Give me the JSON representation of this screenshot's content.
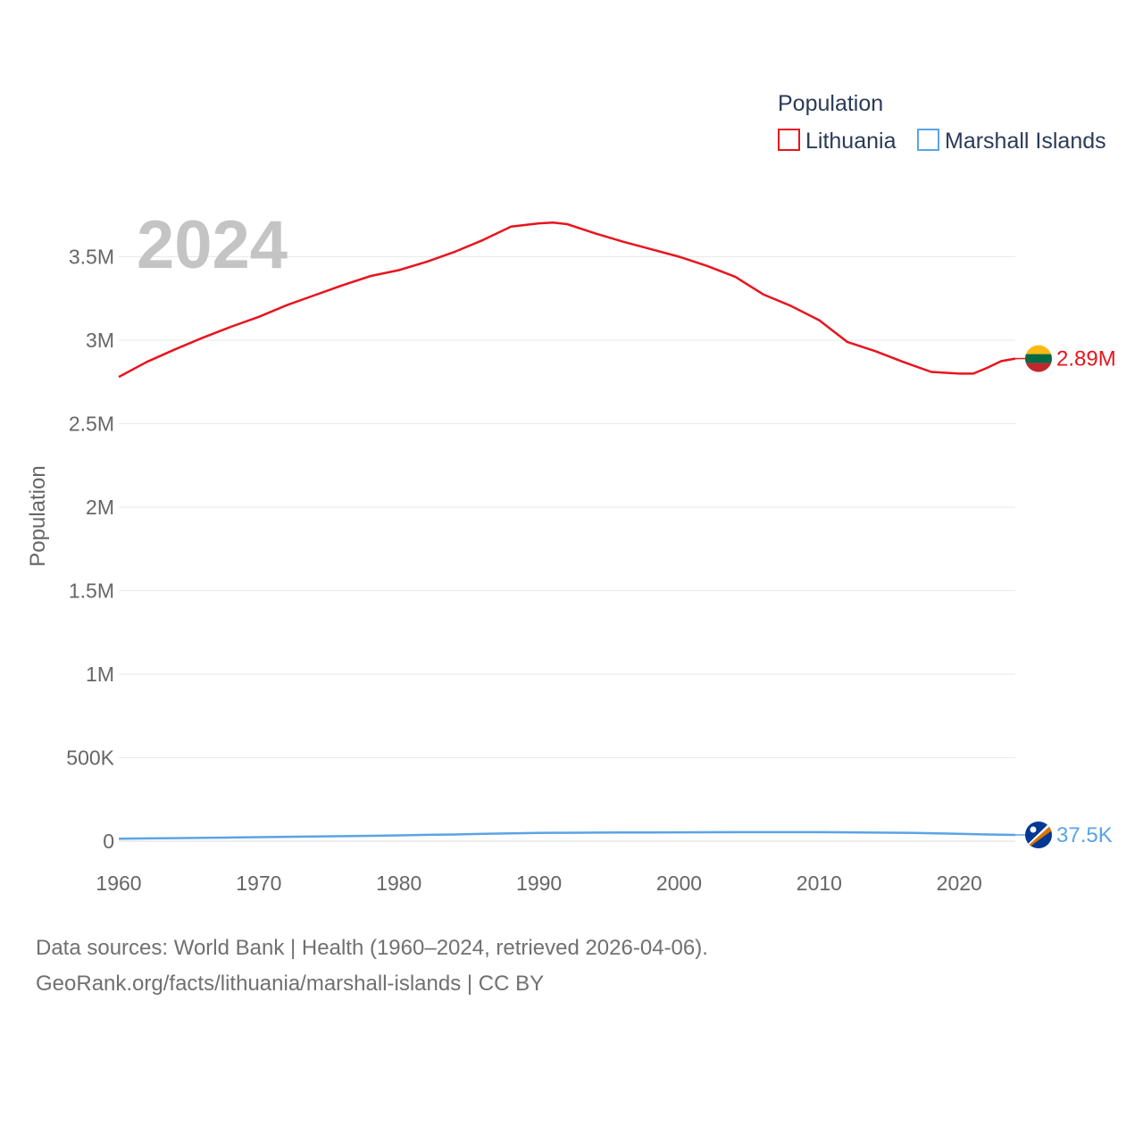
{
  "chart_data": {
    "type": "line",
    "title": "",
    "ylabel": "Population",
    "xlabel": "",
    "year_display": "2024",
    "legend": {
      "title": "Population",
      "placement": "top-right"
    },
    "xlim": [
      1960,
      2024
    ],
    "ylim": [
      0,
      3750000
    ],
    "x_ticks": [
      {
        "value": 1960,
        "label": "1960"
      },
      {
        "value": 1970,
        "label": "1970"
      },
      {
        "value": 1980,
        "label": "1980"
      },
      {
        "value": 1990,
        "label": "1990"
      },
      {
        "value": 2000,
        "label": "2000"
      },
      {
        "value": 2010,
        "label": "2010"
      },
      {
        "value": 2020,
        "label": "2020"
      }
    ],
    "y_ticks": [
      {
        "value": 0,
        "label": "0"
      },
      {
        "value": 500000,
        "label": "500K"
      },
      {
        "value": 1000000,
        "label": "1M"
      },
      {
        "value": 1500000,
        "label": "1.5M"
      },
      {
        "value": 2000000,
        "label": "2M"
      },
      {
        "value": 2500000,
        "label": "2.5M"
      },
      {
        "value": 3000000,
        "label": "3M"
      },
      {
        "value": 3500000,
        "label": "3.5M"
      }
    ],
    "x": [
      1960,
      1962,
      1964,
      1966,
      1968,
      1970,
      1972,
      1974,
      1976,
      1978,
      1980,
      1982,
      1984,
      1986,
      1988,
      1990,
      1991,
      1992,
      1994,
      1996,
      1998,
      2000,
      2002,
      2004,
      2006,
      2008,
      2010,
      2012,
      2014,
      2016,
      2018,
      2020,
      2021,
      2022,
      2023,
      2024
    ],
    "series": [
      {
        "name": "Lithuania",
        "color": "#e8141e",
        "end_label": "2.89M",
        "flag": "lithuania-flag",
        "values": [
          2780000,
          2870000,
          2945000,
          3015000,
          3080000,
          3140000,
          3210000,
          3270000,
          3330000,
          3385000,
          3420000,
          3470000,
          3530000,
          3600000,
          3680000,
          3700000,
          3705000,
          3695000,
          3640000,
          3590000,
          3545000,
          3500000,
          3445000,
          3380000,
          3275000,
          3205000,
          3120000,
          2990000,
          2935000,
          2870000,
          2810000,
          2800000,
          2800000,
          2835000,
          2875000,
          2890000
        ]
      },
      {
        "name": "Marshall Islands",
        "color": "#5ba3e6",
        "end_label": "37.5K",
        "flag": "marshall-islands-flag",
        "values": [
          15000,
          16500,
          18000,
          20000,
          22000,
          24000,
          26000,
          28000,
          30000,
          32000,
          35000,
          38000,
          40000,
          44000,
          47000,
          49000,
          50000,
          50500,
          51500,
          52000,
          52500,
          53000,
          53500,
          54000,
          54000,
          54000,
          54000,
          53000,
          51500,
          50000,
          47500,
          44000,
          42000,
          40000,
          38500,
          37500
        ]
      }
    ]
  },
  "footer": {
    "line1": "Data sources: World Bank | Health (1960–2024, retrieved 2026-04-06).",
    "line2": "GeoRank.org/facts/lithuania/marshall-islands | CC BY"
  }
}
